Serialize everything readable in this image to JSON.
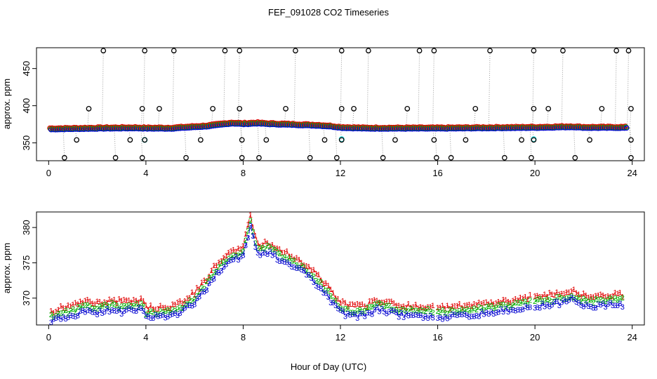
{
  "figure": {
    "title": "FEF_091028  CO2 Timeseries",
    "xlabel": "Hour of Day (UTC)"
  },
  "chart_data": [
    {
      "type": "scatter",
      "panel": "top",
      "ylabel": "approx. ppm",
      "xlim": [
        -0.5,
        24.5
      ],
      "ylim": [
        326,
        478
      ],
      "xticks": [
        0,
        4,
        8,
        12,
        16,
        20,
        24
      ],
      "yticks": [
        350,
        400,
        450
      ],
      "series": [
        {
          "name": "black outlier circles",
          "color": "#000000"
        },
        {
          "name": "red circles",
          "color": "#e00000"
        },
        {
          "name": "green circles",
          "color": "#00b000"
        },
        {
          "name": "blue circles",
          "color": "#0000d0"
        },
        {
          "name": "cyan circles",
          "color": "#33dddd"
        }
      ],
      "outlier_hours_high": [
        2.2,
        3.9,
        5.1,
        7.2,
        7.8,
        10.1,
        12.0,
        13.1,
        15.2,
        15.8,
        18.1,
        19.9,
        21.1,
        23.3,
        23.8
      ],
      "outlier_hours_low": [
        0.6,
        2.7,
        3.8,
        5.6,
        7.9,
        8.6,
        10.7,
        11.8,
        13.7,
        15.9,
        16.5,
        18.7,
        19.8,
        21.6,
        23.9
      ],
      "outlier_hours_mid_high": [
        1.6,
        3.8,
        4.5,
        6.7,
        7.8,
        9.7,
        12.0,
        12.5,
        14.7,
        17.5,
        19.9,
        20.5,
        22.7,
        23.9
      ],
      "outlier_hours_mid_low": [
        1.1,
        3.3,
        3.9,
        6.2,
        7.9,
        8.9,
        11.3,
        12.0,
        14.2,
        15.8,
        17.1,
        19.4,
        19.9,
        22.2,
        23.9
      ],
      "outlier_values": {
        "high": 474,
        "mid_high": 396,
        "mid_low": 354,
        "low": 330
      },
      "cyan_points": [
        [
          3.95,
          354
        ],
        [
          12.05,
          355
        ],
        [
          19.95,
          355
        ]
      ],
      "baseline_knots": [
        [
          0,
          368
        ],
        [
          1,
          368.5
        ],
        [
          2,
          369
        ],
        [
          3.5,
          369.5
        ],
        [
          4,
          369
        ],
        [
          5,
          369
        ],
        [
          5.5,
          370
        ],
        [
          6,
          371
        ],
        [
          6.5,
          372
        ],
        [
          7,
          374
        ],
        [
          7.5,
          376
        ],
        [
          8,
          375
        ],
        [
          8.5,
          376
        ],
        [
          9,
          375
        ],
        [
          10,
          374
        ],
        [
          11,
          373
        ],
        [
          11.5,
          372
        ],
        [
          12,
          370
        ],
        [
          13,
          369
        ],
        [
          15.8,
          369
        ],
        [
          16,
          369
        ],
        [
          18,
          369.5
        ],
        [
          19.8,
          370
        ],
        [
          20,
          370
        ],
        [
          21.5,
          371
        ],
        [
          22,
          370
        ],
        [
          23.7,
          370
        ]
      ]
    },
    {
      "type": "line",
      "panel": "bottom",
      "ylabel": "approx. ppm",
      "xlim": [
        -0.5,
        24.5
      ],
      "ylim": [
        366.2,
        382.2
      ],
      "xticks": [
        0,
        4,
        8,
        12,
        16,
        20,
        24
      ],
      "yticks": [
        370,
        375,
        380
      ],
      "series": [
        {
          "name": "1",
          "color": "#e00000",
          "dash": "6,3"
        },
        {
          "name": "2",
          "color": "#00b000",
          "dash": "4,3,1,3"
        },
        {
          "name": "3",
          "color": "#0000d0",
          "dash": "8,3"
        }
      ],
      "knots_series1": [
        [
          0,
          368
        ],
        [
          0.5,
          368.6
        ],
        [
          1,
          369.0
        ],
        [
          1.5,
          369.6
        ],
        [
          2,
          369.3
        ],
        [
          2.5,
          369.8
        ],
        [
          3,
          369.5
        ],
        [
          3.5,
          369.8
        ],
        [
          3.9,
          369.7
        ],
        [
          4,
          368.7
        ],
        [
          5,
          368.8
        ],
        [
          5.5,
          369.6
        ],
        [
          6,
          370.8
        ],
        [
          6.5,
          372.8
        ],
        [
          7,
          375.3
        ],
        [
          7.5,
          376.6
        ],
        [
          8,
          377.5
        ],
        [
          8.3,
          381.5
        ],
        [
          8.6,
          377.5
        ],
        [
          9,
          378.0
        ],
        [
          9.5,
          377.0
        ],
        [
          10,
          376.0
        ],
        [
          10.5,
          375.0
        ],
        [
          11,
          373.5
        ],
        [
          11.5,
          371.5
        ],
        [
          12,
          369.5
        ],
        [
          12.3,
          369.0
        ],
        [
          13,
          368.9
        ],
        [
          13.5,
          369.8
        ],
        [
          14,
          369.5
        ],
        [
          14.5,
          369.0
        ],
        [
          15,
          368.9
        ],
        [
          15.8,
          368.9
        ],
        [
          16,
          368.7
        ],
        [
          17,
          368.9
        ],
        [
          18,
          369.3
        ],
        [
          19,
          369.7
        ],
        [
          19.8,
          370.2
        ],
        [
          20,
          370.2
        ],
        [
          21,
          370.7
        ],
        [
          21.5,
          371.2
        ],
        [
          22,
          370.4
        ],
        [
          22.5,
          370.3
        ],
        [
          23,
          370.5
        ],
        [
          23.6,
          370.5
        ]
      ],
      "offset_series2": -0.7,
      "offset_series3": -1.4,
      "sample_step_hours": 0.1,
      "gaps": [
        [
          3.9,
          4.0
        ],
        [
          15.85,
          16.0
        ],
        [
          19.85,
          20.0
        ]
      ]
    }
  ]
}
